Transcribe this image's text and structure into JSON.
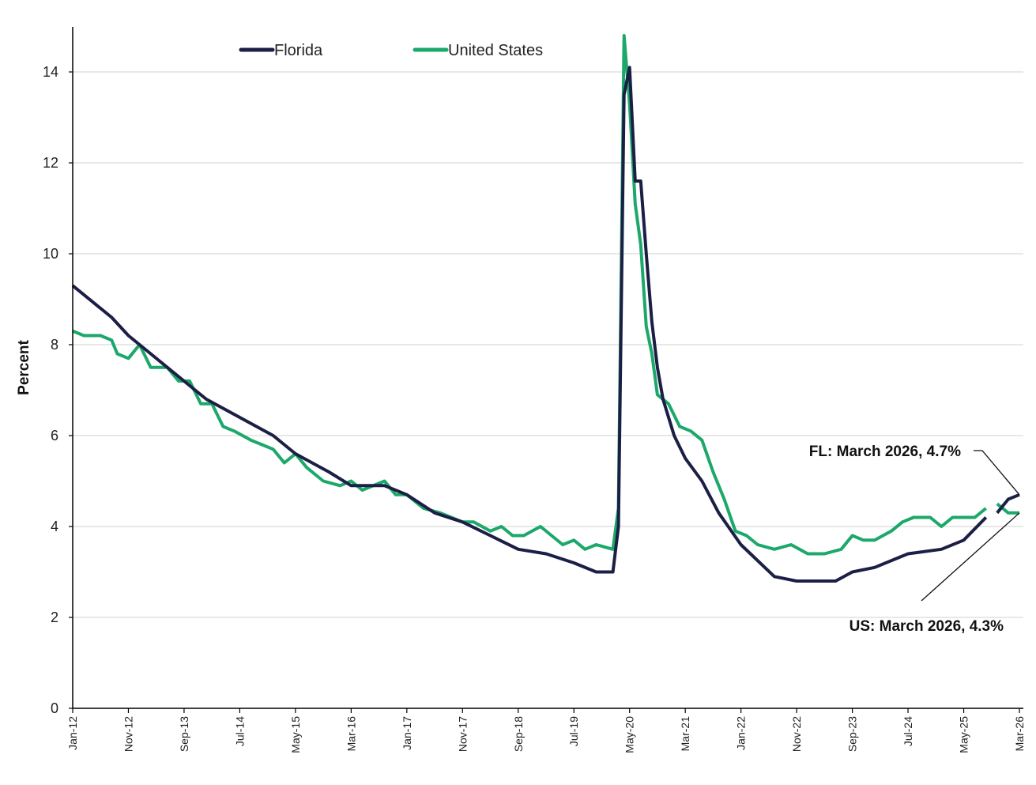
{
  "chart_data": {
    "type": "line",
    "title": "",
    "xlabel": "",
    "ylabel": "Percent",
    "ylim": [
      0,
      15
    ],
    "yticks": [
      "0",
      "2",
      "4",
      "6",
      "8",
      "10",
      "12",
      "14"
    ],
    "xlim": [
      "Jan-12",
      "Mar-26"
    ],
    "xticks": [
      "Jan-12",
      "Nov-12",
      "Sep-13",
      "Jul-14",
      "May-15",
      "Mar-16",
      "Jan-17",
      "Nov-17",
      "Sep-18",
      "Jul-19",
      "May-20",
      "Mar-21",
      "Jan-22",
      "Nov-22",
      "Sep-23",
      "Jul-24",
      "May-25",
      "Mar-26"
    ],
    "grid": "horizontal",
    "legend_position": "top-left",
    "series": [
      {
        "name": "Florida",
        "color": "#1b1f45",
        "points": [
          [
            "Jan-12",
            9.3
          ],
          [
            "May-12",
            8.9
          ],
          [
            "Aug-12",
            8.6
          ],
          [
            "Nov-12",
            8.2
          ],
          [
            "Jan-13",
            8.0
          ],
          [
            "Mar-13",
            7.8
          ],
          [
            "Jun-13",
            7.5
          ],
          [
            "Sep-13",
            7.2
          ],
          [
            "Jan-14",
            6.8
          ],
          [
            "Jul-14",
            6.4
          ],
          [
            "Jan-15",
            6.0
          ],
          [
            "May-15",
            5.6
          ],
          [
            "Nov-15",
            5.2
          ],
          [
            "Mar-16",
            4.9
          ],
          [
            "Sep-16",
            4.9
          ],
          [
            "Jan-17",
            4.7
          ],
          [
            "Jun-17",
            4.3
          ],
          [
            "Nov-17",
            4.1
          ],
          [
            "Apr-18",
            3.8
          ],
          [
            "Sep-18",
            3.5
          ],
          [
            "Feb-19",
            3.4
          ],
          [
            "Jul-19",
            3.2
          ],
          [
            "Nov-19",
            3.0
          ],
          [
            "Feb-20",
            3.0
          ],
          [
            "Mar-20",
            4.0
          ],
          [
            "Apr-20",
            13.5
          ],
          [
            "May-20",
            14.1
          ],
          [
            "Jun-20",
            11.6
          ],
          [
            "Jul-20",
            11.6
          ],
          [
            "Aug-20",
            10.0
          ],
          [
            "Sep-20",
            8.5
          ],
          [
            "Oct-20",
            7.5
          ],
          [
            "Nov-20",
            6.8
          ],
          [
            "Jan-21",
            6.0
          ],
          [
            "Mar-21",
            5.5
          ],
          [
            "Jun-21",
            5.0
          ],
          [
            "Sep-21",
            4.3
          ],
          [
            "Jan-22",
            3.6
          ],
          [
            "Jul-22",
            2.9
          ],
          [
            "Nov-22",
            2.8
          ],
          [
            "Jun-23",
            2.8
          ],
          [
            "Sep-23",
            3.0
          ],
          [
            "Jan-24",
            3.1
          ],
          [
            "Jul-24",
            3.4
          ],
          [
            "Jan-25",
            3.5
          ],
          [
            "May-25",
            3.7
          ],
          [
            "Sep-25",
            4.2
          ]
        ],
        "points_late": [
          [
            "Nov-25",
            4.3
          ],
          [
            "Jan-26",
            4.6
          ],
          [
            "Mar-26",
            4.7
          ]
        ]
      },
      {
        "name": "United States",
        "color": "#1ca86a",
        "points": [
          [
            "Jan-12",
            8.3
          ],
          [
            "Mar-12",
            8.2
          ],
          [
            "Jun-12",
            8.2
          ],
          [
            "Aug-12",
            8.1
          ],
          [
            "Sep-12",
            7.8
          ],
          [
            "Nov-12",
            7.7
          ],
          [
            "Jan-13",
            8.0
          ],
          [
            "Mar-13",
            7.5
          ],
          [
            "Jun-13",
            7.5
          ],
          [
            "Aug-13",
            7.2
          ],
          [
            "Oct-13",
            7.2
          ],
          [
            "Dec-13",
            6.7
          ],
          [
            "Feb-14",
            6.7
          ],
          [
            "Apr-14",
            6.2
          ],
          [
            "Jun-14",
            6.1
          ],
          [
            "Sep-14",
            5.9
          ],
          [
            "Nov-14",
            5.8
          ],
          [
            "Jan-15",
            5.7
          ],
          [
            "Mar-15",
            5.4
          ],
          [
            "May-15",
            5.6
          ],
          [
            "Jul-15",
            5.3
          ],
          [
            "Oct-15",
            5.0
          ],
          [
            "Jan-16",
            4.9
          ],
          [
            "Mar-16",
            5.0
          ],
          [
            "May-16",
            4.8
          ],
          [
            "Sep-16",
            5.0
          ],
          [
            "Nov-16",
            4.7
          ],
          [
            "Jan-17",
            4.7
          ],
          [
            "Apr-17",
            4.4
          ],
          [
            "Jul-17",
            4.3
          ],
          [
            "Sep-17",
            4.2
          ],
          [
            "Nov-17",
            4.1
          ],
          [
            "Jan-18",
            4.1
          ],
          [
            "Apr-18",
            3.9
          ],
          [
            "Jun-18",
            4.0
          ],
          [
            "Aug-18",
            3.8
          ],
          [
            "Oct-18",
            3.8
          ],
          [
            "Jan-19",
            4.0
          ],
          [
            "Mar-19",
            3.8
          ],
          [
            "May-19",
            3.6
          ],
          [
            "Jul-19",
            3.7
          ],
          [
            "Sep-19",
            3.5
          ],
          [
            "Nov-19",
            3.6
          ],
          [
            "Feb-20",
            3.5
          ],
          [
            "Mar-20",
            4.4
          ],
          [
            "Apr-20",
            14.8
          ],
          [
            "May-20",
            13.3
          ],
          [
            "Jun-20",
            11.1
          ],
          [
            "Jul-20",
            10.2
          ],
          [
            "Aug-20",
            8.4
          ],
          [
            "Sep-20",
            7.8
          ],
          [
            "Oct-20",
            6.9
          ],
          [
            "Dec-20",
            6.7
          ],
          [
            "Feb-21",
            6.2
          ],
          [
            "Apr-21",
            6.1
          ],
          [
            "Jun-21",
            5.9
          ],
          [
            "Aug-21",
            5.2
          ],
          [
            "Oct-21",
            4.6
          ],
          [
            "Dec-21",
            3.9
          ],
          [
            "Feb-22",
            3.8
          ],
          [
            "Apr-22",
            3.6
          ],
          [
            "Jul-22",
            3.5
          ],
          [
            "Oct-22",
            3.6
          ],
          [
            "Jan-23",
            3.4
          ],
          [
            "Apr-23",
            3.4
          ],
          [
            "Jul-23",
            3.5
          ],
          [
            "Sep-23",
            3.8
          ],
          [
            "Nov-23",
            3.7
          ],
          [
            "Jan-24",
            3.7
          ],
          [
            "Apr-24",
            3.9
          ],
          [
            "Jun-24",
            4.1
          ],
          [
            "Aug-24",
            4.2
          ],
          [
            "Nov-24",
            4.2
          ],
          [
            "Jan-25",
            4.0
          ],
          [
            "Mar-25",
            4.2
          ],
          [
            "May-25",
            4.2
          ],
          [
            "Jul-25",
            4.2
          ],
          [
            "Sep-25",
            4.4
          ]
        ],
        "points_late": [
          [
            "Nov-25",
            4.5
          ],
          [
            "Jan-26",
            4.3
          ],
          [
            "Mar-26",
            4.3
          ]
        ]
      }
    ],
    "annotations": [
      {
        "text": "FL: March 2026, 4.7%",
        "series": "Florida",
        "x": "Mar-26",
        "y": 4.7
      },
      {
        "text": "US: March 2026, 4.3%",
        "series": "United States",
        "x": "Mar-26",
        "y": 4.3
      }
    ]
  }
}
